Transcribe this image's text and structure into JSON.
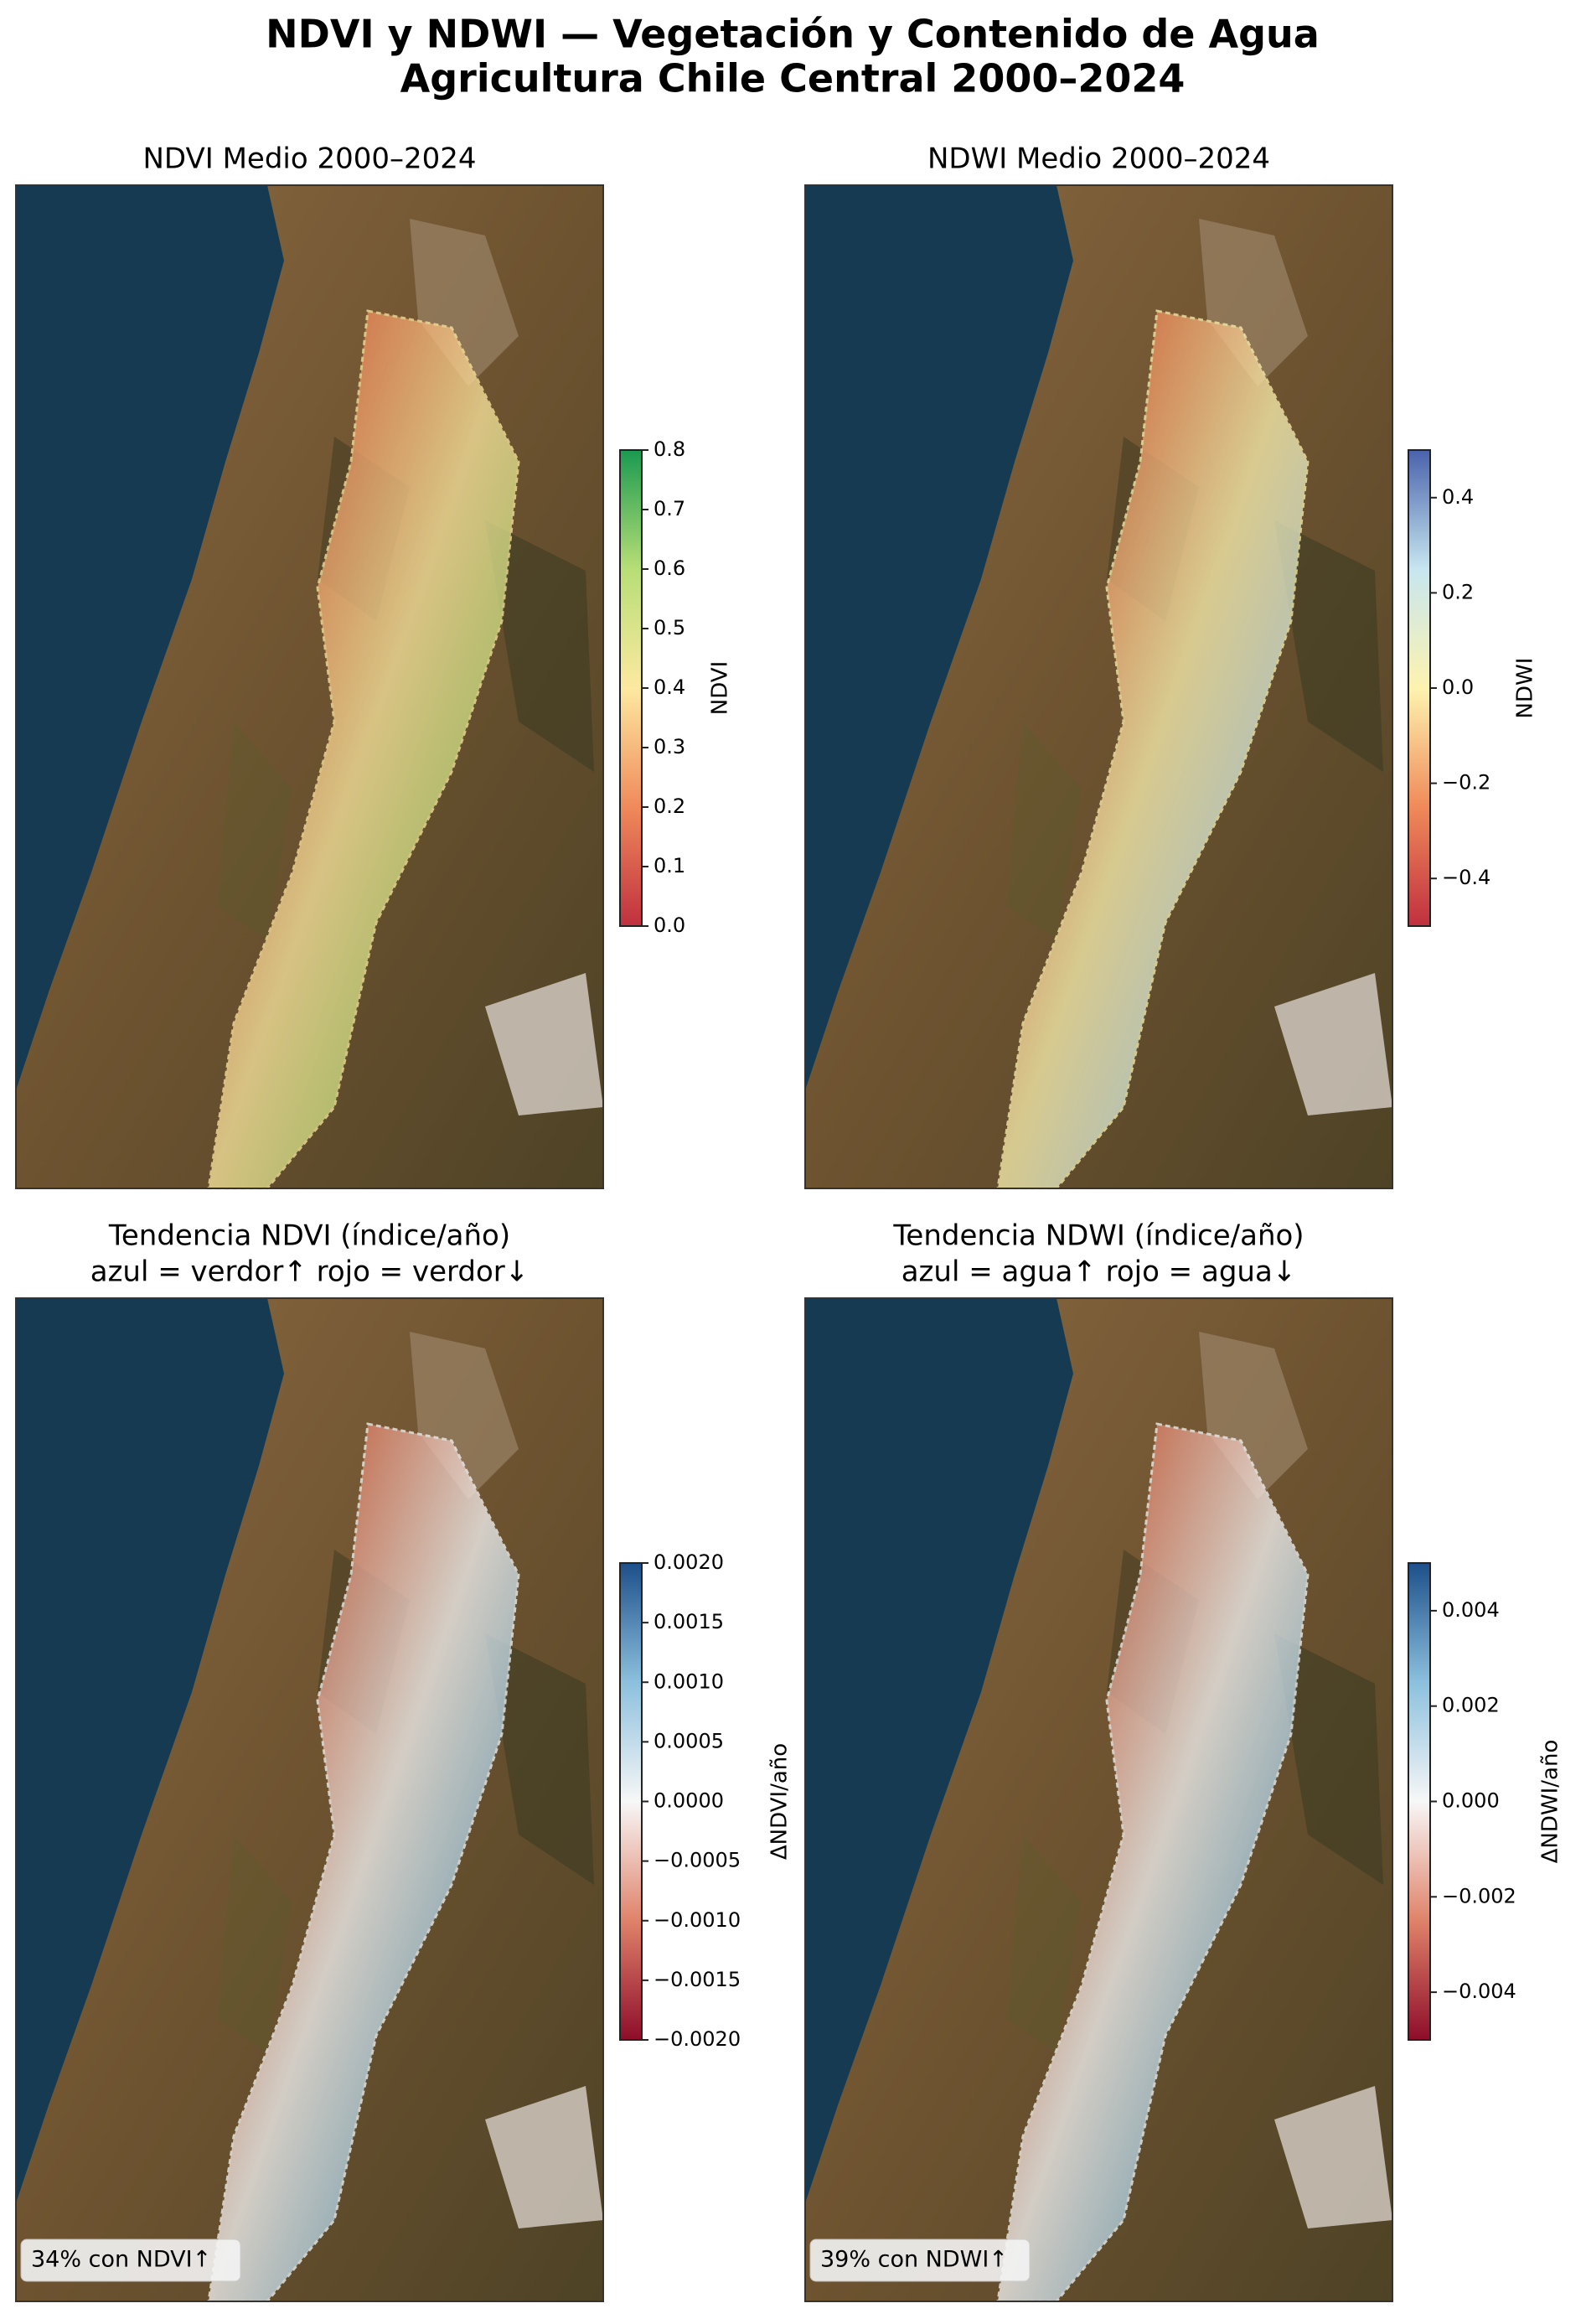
{
  "title": [
    "NDVI y NDWI — Vegetación y Contenido de Agua",
    "Agricultura Chile Central 2000–2024"
  ],
  "panels": [
    {
      "type": "map",
      "title": [
        "NDVI Medio 2000–2024"
      ],
      "colorbar_label": "NDVI",
      "colors": [
        "#c0303f",
        "#f08a5a",
        "#fde9a0",
        "#b7de76",
        "#1a9a50"
      ],
      "lim": [
        0,
        0.8
      ],
      "ticks": [
        {
          "value": 0,
          "label": "0.0"
        },
        0.1,
        0.2,
        0.3,
        0.4,
        0.5,
        0.6,
        0.7,
        0.8
      ]
    },
    {
      "type": "map",
      "title": [
        "NDWI Medio 2000–2024"
      ],
      "colorbar_label": "NDWI",
      "colors": [
        "#c0303f",
        "#f08a5a",
        "#fdf3b0",
        "#c7e6ef",
        "#4a62ac"
      ],
      "lim": [
        -0.5,
        0.5
      ],
      "ticks": [
        {
          "value": -0.4,
          "label": "−0.4"
        },
        {
          "value": -0.2,
          "label": "−0.2"
        },
        {
          "value": 0,
          "label": "0.0"
        },
        0.2,
        0.4
      ]
    },
    {
      "type": "map",
      "title": [
        "Tendencia NDVI (índice/año)",
        "azul = verdor↑    rojo = verdor↓"
      ],
      "colorbar_label": "ΔNDVI/año",
      "colors": [
        "#8e0d2a",
        "#e0826a",
        "#f7f7f7",
        "#8cc0dd",
        "#1d4f8a"
      ],
      "lim": [
        -0.002,
        0.002
      ],
      "ticks": [
        {
          "value": -0.002,
          "label": "−0.0020"
        },
        {
          "value": -0.0015,
          "label": "−0.0015"
        },
        {
          "value": -0.001,
          "label": "−0.0010"
        },
        {
          "value": -0.0005,
          "label": "−0.0005"
        },
        {
          "value": 0,
          "label": "0.0000"
        },
        {
          "value": 0.0005,
          "label": "0.0005"
        },
        {
          "value": 0.001,
          "label": "0.0010"
        },
        {
          "value": 0.0015,
          "label": "0.0015"
        },
        {
          "value": 0.002,
          "label": "0.0020"
        }
      ],
      "annotation": "34% con NDVI↑"
    },
    {
      "type": "map",
      "title": [
        "Tendencia NDWI (índice/año)",
        "azul = agua↑    rojo = agua↓"
      ],
      "colorbar_label": "ΔNDWI/año",
      "colors": [
        "#8e0d2a",
        "#e0826a",
        "#f7f7f7",
        "#8cc0dd",
        "#1d4f8a"
      ],
      "lim": [
        -0.005,
        0.005
      ],
      "ticks": [
        {
          "value": -0.004,
          "label": "−0.004"
        },
        {
          "value": -0.002,
          "label": "−0.002"
        },
        {
          "value": 0,
          "label": "0.000"
        },
        {
          "value": 0.002,
          "label": "0.002"
        },
        {
          "value": 0.004,
          "label": "0.004"
        }
      ],
      "annotation": "39% con NDWI↑"
    }
  ]
}
